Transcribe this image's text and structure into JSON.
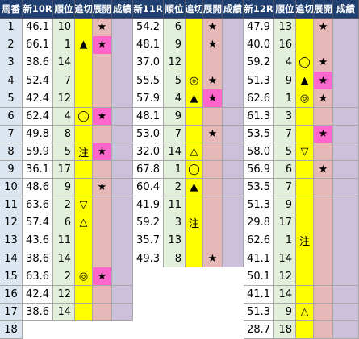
{
  "header": {
    "horse_no": "馬番",
    "race_a": "新10R",
    "race_b": "新11R",
    "race_c": "新12R",
    "rank": "順位",
    "oikiri": "追切",
    "tenkai": "展開",
    "seiseki": "成績"
  },
  "colors": {
    "header_bg": "#1f3f70",
    "value_bg": "#ffffff",
    "rank_bg": "#e2efda",
    "oikiri_bg": "#ffff00",
    "tenkai_bg": "#e6b8b7",
    "tenkai_highlight_bg": "#ff66cc",
    "seiseki_bg": "#ccc0da",
    "horse_no_bg": "#dce6f1"
  },
  "rows": [
    {
      "no": "1",
      "r10": {
        "v": "46.1",
        "r": "10",
        "o": "",
        "t": "★",
        "th": false
      },
      "r11": {
        "v": "54.2",
        "r": "6",
        "o": "",
        "t": "★",
        "th": false
      },
      "r12": {
        "v": "47.9",
        "r": "13",
        "o": "",
        "t": "★",
        "th": false
      }
    },
    {
      "no": "2",
      "r10": {
        "v": "66.1",
        "r": "1",
        "o": "▲",
        "t": "★",
        "th": true
      },
      "r11": {
        "v": "48.1",
        "r": "9",
        "o": "",
        "t": "★",
        "th": false
      },
      "r12": {
        "v": "40.0",
        "r": "16",
        "o": "",
        "t": "",
        "th": false
      }
    },
    {
      "no": "3",
      "r10": {
        "v": "38.6",
        "r": "14",
        "o": "",
        "t": "",
        "th": false
      },
      "r11": {
        "v": "37.0",
        "r": "12",
        "o": "",
        "t": "",
        "th": false
      },
      "r12": {
        "v": "59.2",
        "r": "4",
        "o": "◯",
        "t": "★",
        "th": false
      }
    },
    {
      "no": "4",
      "r10": {
        "v": "52.4",
        "r": "7",
        "o": "",
        "t": "",
        "th": false
      },
      "r11": {
        "v": "55.5",
        "r": "5",
        "o": "◎",
        "t": "★",
        "th": false
      },
      "r12": {
        "v": "51.3",
        "r": "9",
        "o": "▲",
        "t": "★",
        "th": true
      }
    },
    {
      "no": "5",
      "r10": {
        "v": "42.4",
        "r": "12",
        "o": "",
        "t": "",
        "th": false
      },
      "r11": {
        "v": "57.9",
        "r": "4",
        "o": "▲",
        "t": "★",
        "th": true
      },
      "r12": {
        "v": "62.6",
        "r": "1",
        "o": "◎",
        "t": "★",
        "th": false
      }
    },
    {
      "no": "6",
      "r10": {
        "v": "62.4",
        "r": "4",
        "o": "◯",
        "t": "★",
        "th": true
      },
      "r11": {
        "v": "48.1",
        "r": "9",
        "o": "",
        "t": "",
        "th": false
      },
      "r12": {
        "v": "61.3",
        "r": "3",
        "o": "",
        "t": "",
        "th": false
      }
    },
    {
      "no": "7",
      "r10": {
        "v": "49.8",
        "r": "8",
        "o": "",
        "t": "",
        "th": false
      },
      "r11": {
        "v": "53.0",
        "r": "7",
        "o": "",
        "t": "★",
        "th": false
      },
      "r12": {
        "v": "53.5",
        "r": "7",
        "o": "",
        "t": "★",
        "th": true
      }
    },
    {
      "no": "8",
      "r10": {
        "v": "59.9",
        "r": "5",
        "o": "注",
        "t": "★",
        "th": true
      },
      "r11": {
        "v": "32.0",
        "r": "14",
        "o": "△",
        "t": "",
        "th": false
      },
      "r12": {
        "v": "58.0",
        "r": "5",
        "o": "▽",
        "t": "",
        "th": false
      }
    },
    {
      "no": "9",
      "r10": {
        "v": "36.1",
        "r": "17",
        "o": "",
        "t": "",
        "th": false
      },
      "r11": {
        "v": "67.8",
        "r": "1",
        "o": "◯",
        "t": "",
        "th": false
      },
      "r12": {
        "v": "56.9",
        "r": "6",
        "o": "",
        "t": "★",
        "th": false
      }
    },
    {
      "no": "10",
      "r10": {
        "v": "48.6",
        "r": "9",
        "o": "",
        "t": "★",
        "th": false
      },
      "r11": {
        "v": "60.4",
        "r": "2",
        "o": "▲",
        "t": "",
        "th": false
      },
      "r12": {
        "v": "53.5",
        "r": "7",
        "o": "",
        "t": "",
        "th": false
      }
    },
    {
      "no": "11",
      "r10": {
        "v": "63.6",
        "r": "2",
        "o": "▽",
        "t": "",
        "th": false
      },
      "r11": {
        "v": "41.9",
        "r": "11",
        "o": "",
        "t": "",
        "th": false
      },
      "r12": {
        "v": "51.3",
        "r": "9",
        "o": "",
        "t": "",
        "th": false
      }
    },
    {
      "no": "12",
      "r10": {
        "v": "57.4",
        "r": "6",
        "o": "△",
        "t": "",
        "th": false
      },
      "r11": {
        "v": "59.2",
        "r": "3",
        "o": "注",
        "t": "",
        "th": false
      },
      "r12": {
        "v": "29.8",
        "r": "17",
        "o": "",
        "t": "",
        "th": false
      }
    },
    {
      "no": "13",
      "r10": {
        "v": "43.6",
        "r": "11",
        "o": "",
        "t": "",
        "th": false
      },
      "r11": {
        "v": "35.7",
        "r": "13",
        "o": "",
        "t": "",
        "th": false
      },
      "r12": {
        "v": "62.6",
        "r": "1",
        "o": "注",
        "t": "",
        "th": false
      }
    },
    {
      "no": "14",
      "r10": {
        "v": "38.6",
        "r": "14",
        "o": "",
        "t": "",
        "th": false
      },
      "r11": {
        "v": "49.3",
        "r": "8",
        "o": "",
        "t": "★",
        "th": false
      },
      "r12": {
        "v": "41.1",
        "r": "14",
        "o": "",
        "t": "",
        "th": false
      }
    },
    {
      "no": "15",
      "r10": {
        "v": "63.6",
        "r": "2",
        "o": "◎",
        "t": "★",
        "th": true
      },
      "r11": null,
      "r12": {
        "v": "50.1",
        "r": "12",
        "o": "",
        "t": "",
        "th": false
      }
    },
    {
      "no": "16",
      "r10": {
        "v": "42.4",
        "r": "12",
        "o": "",
        "t": "",
        "th": false
      },
      "r11": null,
      "r12": {
        "v": "41.1",
        "r": "14",
        "o": "",
        "t": "",
        "th": false
      }
    },
    {
      "no": "17",
      "r10": {
        "v": "38.6",
        "r": "14",
        "o": "",
        "t": "",
        "th": false
      },
      "r11": null,
      "r12": {
        "v": "51.3",
        "r": "9",
        "o": "△",
        "t": "",
        "th": false
      }
    },
    {
      "no": "18",
      "r10": null,
      "r11": null,
      "r12": {
        "v": "28.7",
        "r": "18",
        "o": "",
        "t": "",
        "th": false
      }
    }
  ]
}
